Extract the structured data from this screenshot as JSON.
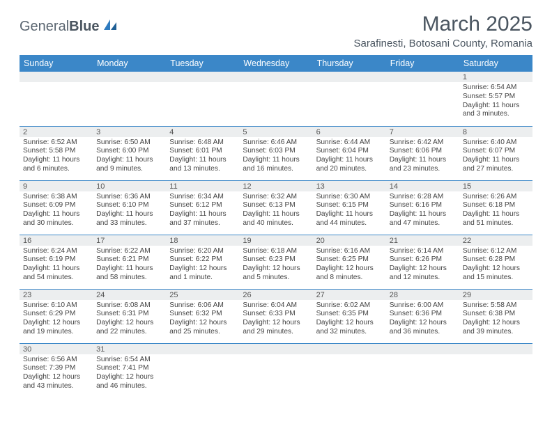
{
  "logo": {
    "text1": "General",
    "text2": "Blue"
  },
  "title": "March 2025",
  "location": "Sarafinesti, Botosani County, Romania",
  "colors": {
    "header_bg": "#3b87c8",
    "header_text": "#ffffff",
    "daynum_bg": "#eceeef",
    "border": "#3b87c8",
    "logo_blue": "#2f7bbf",
    "text_gray": "#4a5560"
  },
  "weekdays": [
    "Sunday",
    "Monday",
    "Tuesday",
    "Wednesday",
    "Thursday",
    "Friday",
    "Saturday"
  ],
  "weeks": [
    [
      {
        "n": "",
        "lines": []
      },
      {
        "n": "",
        "lines": []
      },
      {
        "n": "",
        "lines": []
      },
      {
        "n": "",
        "lines": []
      },
      {
        "n": "",
        "lines": []
      },
      {
        "n": "",
        "lines": []
      },
      {
        "n": "1",
        "lines": [
          "Sunrise: 6:54 AM",
          "Sunset: 5:57 PM",
          "Daylight: 11 hours and 3 minutes."
        ]
      }
    ],
    [
      {
        "n": "2",
        "lines": [
          "Sunrise: 6:52 AM",
          "Sunset: 5:58 PM",
          "Daylight: 11 hours and 6 minutes."
        ]
      },
      {
        "n": "3",
        "lines": [
          "Sunrise: 6:50 AM",
          "Sunset: 6:00 PM",
          "Daylight: 11 hours and 9 minutes."
        ]
      },
      {
        "n": "4",
        "lines": [
          "Sunrise: 6:48 AM",
          "Sunset: 6:01 PM",
          "Daylight: 11 hours and 13 minutes."
        ]
      },
      {
        "n": "5",
        "lines": [
          "Sunrise: 6:46 AM",
          "Sunset: 6:03 PM",
          "Daylight: 11 hours and 16 minutes."
        ]
      },
      {
        "n": "6",
        "lines": [
          "Sunrise: 6:44 AM",
          "Sunset: 6:04 PM",
          "Daylight: 11 hours and 20 minutes."
        ]
      },
      {
        "n": "7",
        "lines": [
          "Sunrise: 6:42 AM",
          "Sunset: 6:06 PM",
          "Daylight: 11 hours and 23 minutes."
        ]
      },
      {
        "n": "8",
        "lines": [
          "Sunrise: 6:40 AM",
          "Sunset: 6:07 PM",
          "Daylight: 11 hours and 27 minutes."
        ]
      }
    ],
    [
      {
        "n": "9",
        "lines": [
          "Sunrise: 6:38 AM",
          "Sunset: 6:09 PM",
          "Daylight: 11 hours and 30 minutes."
        ]
      },
      {
        "n": "10",
        "lines": [
          "Sunrise: 6:36 AM",
          "Sunset: 6:10 PM",
          "Daylight: 11 hours and 33 minutes."
        ]
      },
      {
        "n": "11",
        "lines": [
          "Sunrise: 6:34 AM",
          "Sunset: 6:12 PM",
          "Daylight: 11 hours and 37 minutes."
        ]
      },
      {
        "n": "12",
        "lines": [
          "Sunrise: 6:32 AM",
          "Sunset: 6:13 PM",
          "Daylight: 11 hours and 40 minutes."
        ]
      },
      {
        "n": "13",
        "lines": [
          "Sunrise: 6:30 AM",
          "Sunset: 6:15 PM",
          "Daylight: 11 hours and 44 minutes."
        ]
      },
      {
        "n": "14",
        "lines": [
          "Sunrise: 6:28 AM",
          "Sunset: 6:16 PM",
          "Daylight: 11 hours and 47 minutes."
        ]
      },
      {
        "n": "15",
        "lines": [
          "Sunrise: 6:26 AM",
          "Sunset: 6:18 PM",
          "Daylight: 11 hours and 51 minutes."
        ]
      }
    ],
    [
      {
        "n": "16",
        "lines": [
          "Sunrise: 6:24 AM",
          "Sunset: 6:19 PM",
          "Daylight: 11 hours and 54 minutes."
        ]
      },
      {
        "n": "17",
        "lines": [
          "Sunrise: 6:22 AM",
          "Sunset: 6:21 PM",
          "Daylight: 11 hours and 58 minutes."
        ]
      },
      {
        "n": "18",
        "lines": [
          "Sunrise: 6:20 AM",
          "Sunset: 6:22 PM",
          "Daylight: 12 hours and 1 minute."
        ]
      },
      {
        "n": "19",
        "lines": [
          "Sunrise: 6:18 AM",
          "Sunset: 6:23 PM",
          "Daylight: 12 hours and 5 minutes."
        ]
      },
      {
        "n": "20",
        "lines": [
          "Sunrise: 6:16 AM",
          "Sunset: 6:25 PM",
          "Daylight: 12 hours and 8 minutes."
        ]
      },
      {
        "n": "21",
        "lines": [
          "Sunrise: 6:14 AM",
          "Sunset: 6:26 PM",
          "Daylight: 12 hours and 12 minutes."
        ]
      },
      {
        "n": "22",
        "lines": [
          "Sunrise: 6:12 AM",
          "Sunset: 6:28 PM",
          "Daylight: 12 hours and 15 minutes."
        ]
      }
    ],
    [
      {
        "n": "23",
        "lines": [
          "Sunrise: 6:10 AM",
          "Sunset: 6:29 PM",
          "Daylight: 12 hours and 19 minutes."
        ]
      },
      {
        "n": "24",
        "lines": [
          "Sunrise: 6:08 AM",
          "Sunset: 6:31 PM",
          "Daylight: 12 hours and 22 minutes."
        ]
      },
      {
        "n": "25",
        "lines": [
          "Sunrise: 6:06 AM",
          "Sunset: 6:32 PM",
          "Daylight: 12 hours and 25 minutes."
        ]
      },
      {
        "n": "26",
        "lines": [
          "Sunrise: 6:04 AM",
          "Sunset: 6:33 PM",
          "Daylight: 12 hours and 29 minutes."
        ]
      },
      {
        "n": "27",
        "lines": [
          "Sunrise: 6:02 AM",
          "Sunset: 6:35 PM",
          "Daylight: 12 hours and 32 minutes."
        ]
      },
      {
        "n": "28",
        "lines": [
          "Sunrise: 6:00 AM",
          "Sunset: 6:36 PM",
          "Daylight: 12 hours and 36 minutes."
        ]
      },
      {
        "n": "29",
        "lines": [
          "Sunrise: 5:58 AM",
          "Sunset: 6:38 PM",
          "Daylight: 12 hours and 39 minutes."
        ]
      }
    ],
    [
      {
        "n": "30",
        "lines": [
          "Sunrise: 6:56 AM",
          "Sunset: 7:39 PM",
          "Daylight: 12 hours and 43 minutes."
        ]
      },
      {
        "n": "31",
        "lines": [
          "Sunrise: 6:54 AM",
          "Sunset: 7:41 PM",
          "Daylight: 12 hours and 46 minutes."
        ]
      },
      {
        "n": "",
        "lines": []
      },
      {
        "n": "",
        "lines": []
      },
      {
        "n": "",
        "lines": []
      },
      {
        "n": "",
        "lines": []
      },
      {
        "n": "",
        "lines": []
      }
    ]
  ]
}
